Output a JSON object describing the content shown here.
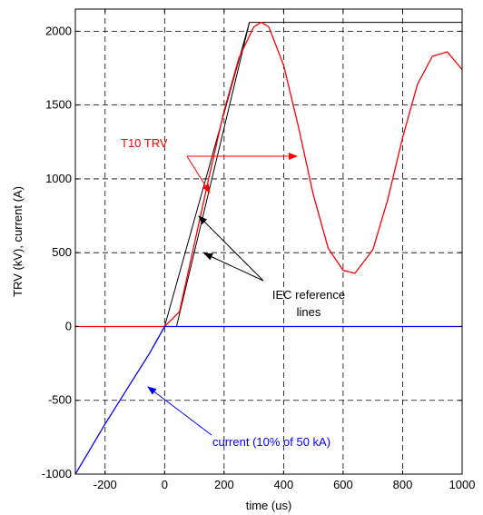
{
  "chart_data": {
    "type": "line",
    "title": "",
    "xlabel": "time (us)",
    "ylabel": "TRV (kV), current (A)",
    "xlim": [
      -300,
      1000
    ],
    "ylim": [
      -1000,
      2150
    ],
    "x_ticks": [
      -200,
      0,
      200,
      400,
      600,
      800,
      1000
    ],
    "y_ticks": [
      -1000,
      -500,
      0,
      500,
      1000,
      1500,
      2000
    ],
    "grid": true,
    "grid_style": "dashed",
    "colors": {
      "trv": "#ff0000",
      "current": "#0000ff",
      "reference": "#000000",
      "grid": "#000000"
    },
    "series": [
      {
        "role": "trv",
        "x": [
          -300,
          -200,
          -100,
          0,
          50,
          100,
          150,
          200,
          250,
          300,
          325,
          350,
          400,
          450,
          500,
          550,
          600,
          640,
          700,
          750,
          800,
          850,
          900,
          950,
          1000
        ],
        "y": [
          0,
          0,
          0,
          0,
          100,
          560,
          1020,
          1460,
          1820,
          2030,
          2060,
          2030,
          1770,
          1350,
          890,
          530,
          380,
          360,
          520,
          860,
          1280,
          1640,
          1830,
          1860,
          1740
        ]
      },
      {
        "role": "current",
        "x": [
          -300,
          -250,
          -200,
          -150,
          -100,
          -50,
          0,
          50,
          100,
          200,
          300,
          400,
          500,
          600,
          700,
          800,
          900,
          1000
        ],
        "y": [
          -1000,
          -830,
          -660,
          -500,
          -340,
          -180,
          0,
          0,
          0,
          0,
          0,
          0,
          0,
          0,
          0,
          0,
          0,
          0
        ]
      },
      {
        "role": "reference",
        "x": [
          0,
          285,
          1000
        ],
        "y": [
          0,
          2060,
          2060
        ]
      },
      {
        "role": "reference",
        "x": [
          40,
          285
        ],
        "y": [
          0,
          2060
        ]
      }
    ],
    "annotations": [
      {
        "id": "trv",
        "text": "T10 TRV",
        "color": "#ff0000"
      },
      {
        "id": "iec1",
        "text": "IEC reference",
        "color": "#000000"
      },
      {
        "id": "iec2",
        "text": "lines",
        "color": "#000000"
      },
      {
        "id": "cur",
        "text": "current (10% of 50 kA)",
        "color": "#0000ff"
      }
    ]
  }
}
